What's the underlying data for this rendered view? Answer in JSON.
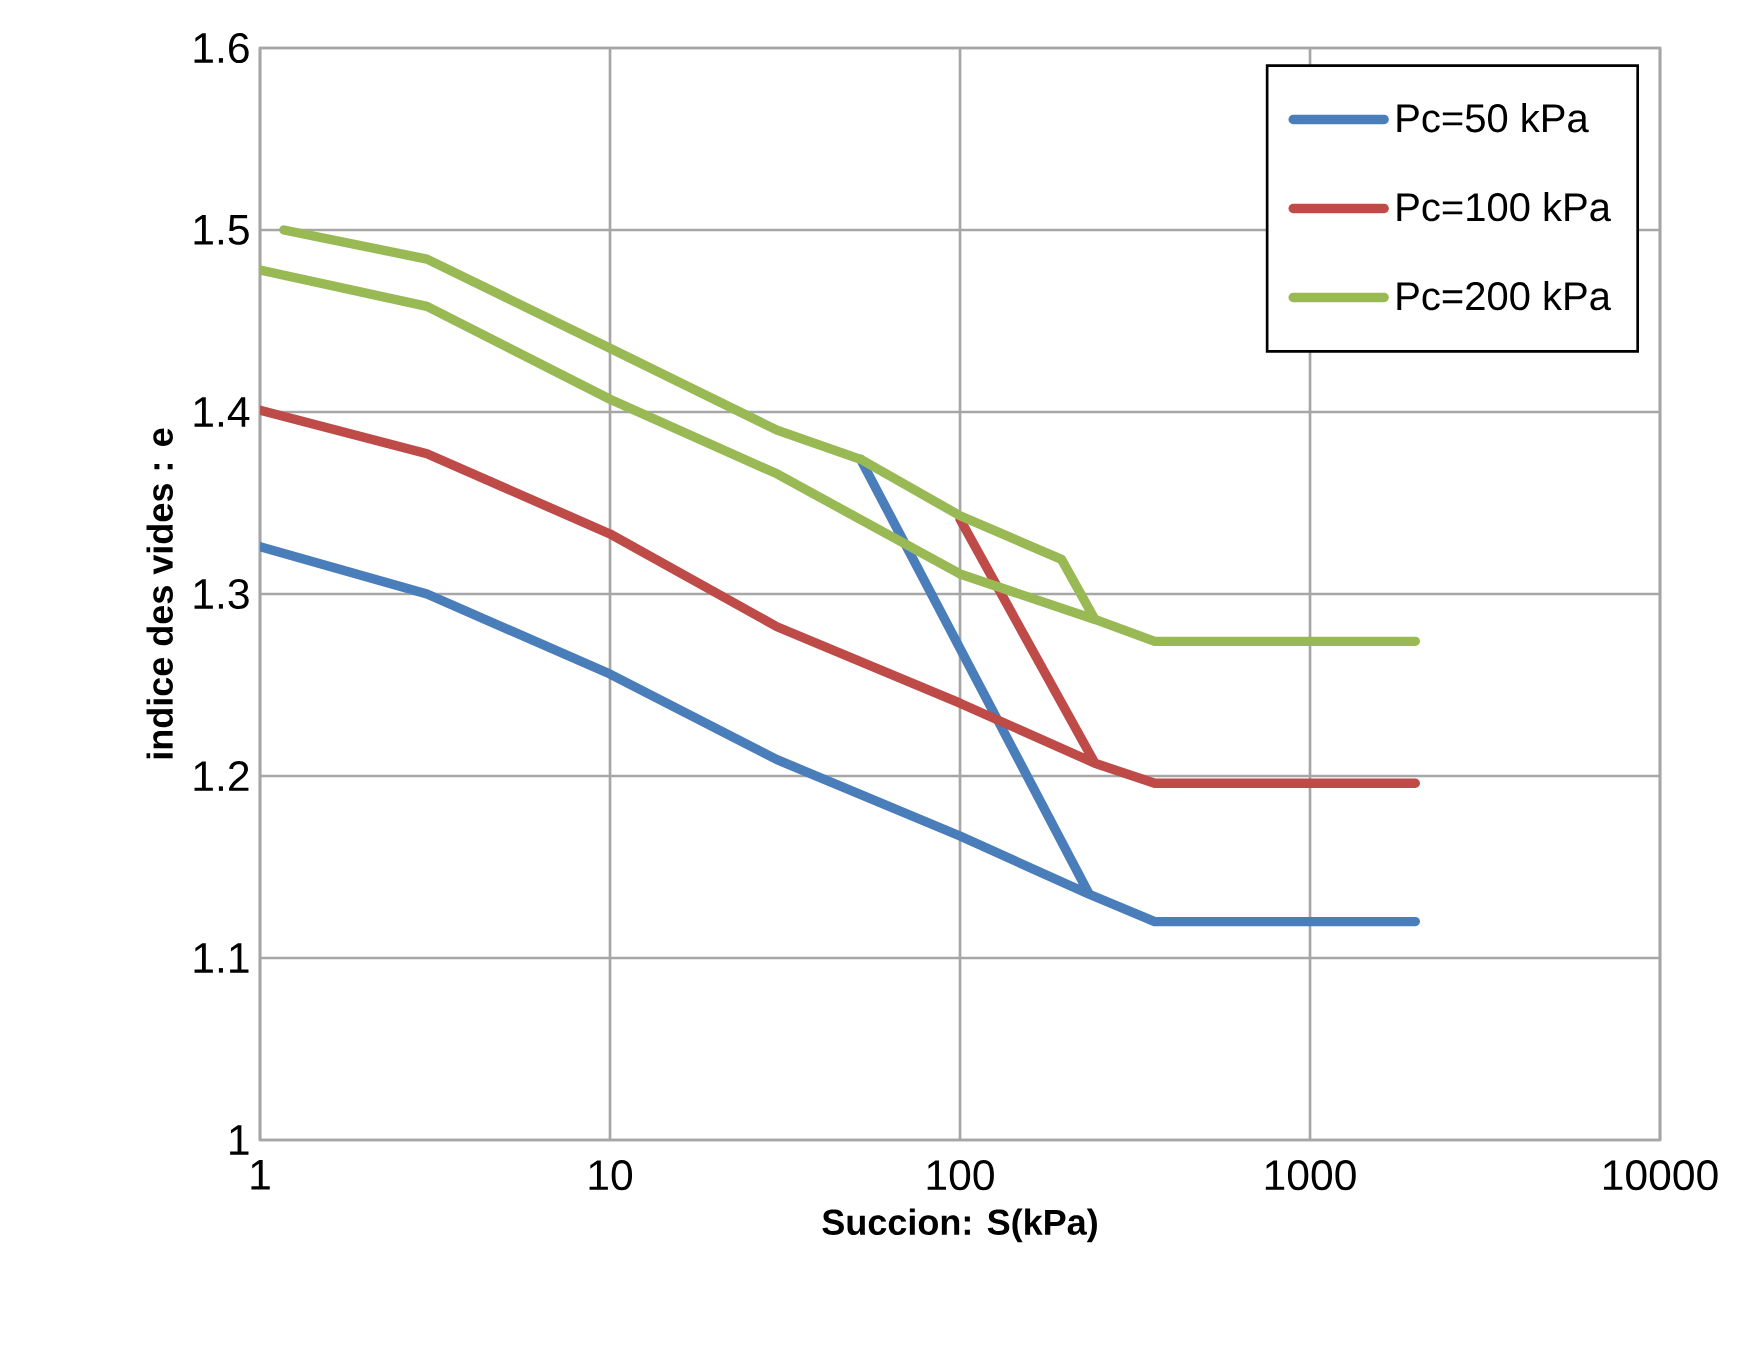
{
  "chart_data": {
    "type": "line",
    "xlabel": "Succion: S(kPa)",
    "ylabel": "indice des vides : e",
    "log": "x",
    "grid": true,
    "legend": "top right",
    "xlim": [
      1,
      10000
    ],
    "ylim": [
      1,
      1.6
    ],
    "xticks": [
      1,
      10,
      100,
      1000,
      10000
    ],
    "yticks": [
      1,
      1.1,
      1.2,
      1.3,
      1.4,
      1.5,
      1.6
    ],
    "series": [
      {
        "name": "Pc=50 kPa",
        "color": "#4a7ebb",
        "x": [
          1,
          3,
          10,
          30,
          100,
          234,
          360,
          2000,
          null,
          52,
          234
        ],
        "values": [
          1.326,
          1.3,
          1.256,
          1.209,
          1.167,
          1.135,
          1.12,
          1.12,
          null,
          1.374,
          1.135
        ]
      },
      {
        "name": "Pc=100 kPa",
        "color": "#be4b48",
        "x": [
          1,
          3,
          10,
          30,
          100,
          243,
          360,
          2000,
          null,
          100,
          243
        ],
        "values": [
          1.401,
          1.377,
          1.333,
          1.282,
          1.24,
          1.207,
          1.196,
          1.196,
          null,
          1.341,
          1.207
        ]
      },
      {
        "name": "Pc=200 kPa",
        "color": "#98b954",
        "x": [
          1.17,
          3,
          10,
          30,
          52,
          100,
          195,
          243,
          360,
          2000,
          null,
          1,
          3,
          10,
          30,
          100,
          243
        ],
        "values": [
          1.5,
          1.484,
          1.435,
          1.39,
          1.374,
          1.343,
          1.319,
          1.286,
          1.274,
          1.274,
          null,
          1.478,
          1.458,
          1.407,
          1.366,
          1.311,
          1.286
        ]
      }
    ]
  }
}
